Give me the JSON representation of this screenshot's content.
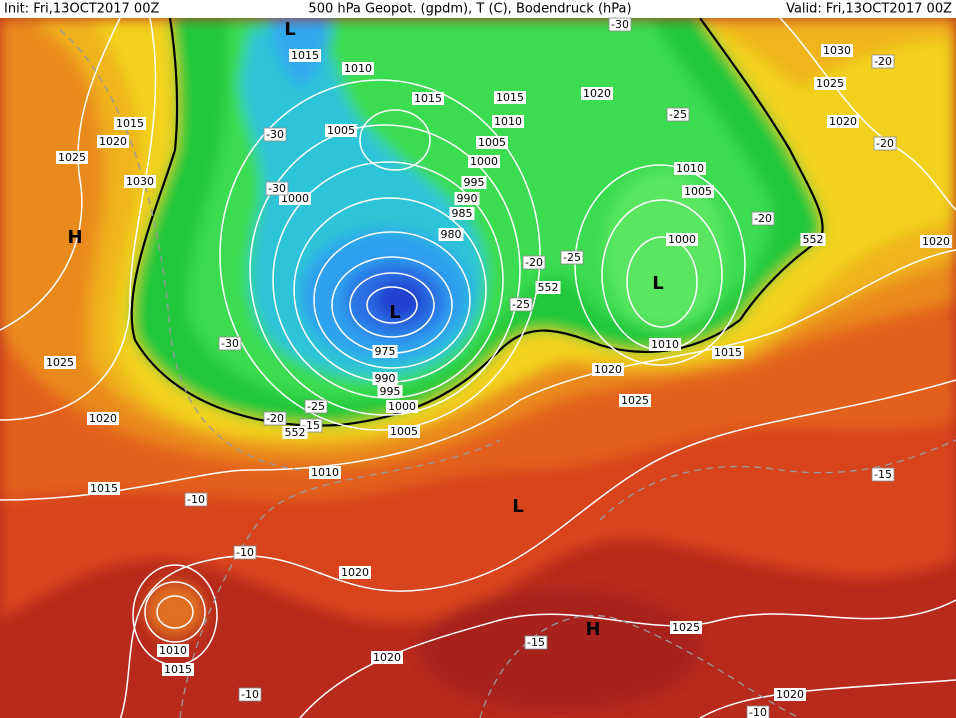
{
  "header": {
    "init": "Init: Fri,13OCT2017 00Z",
    "title": "500 hPa Geopot. (gpdm), T (C), Bodendruck (hPa)",
    "valid": "Valid: Fri,13OCT2017 00Z"
  },
  "pressure_labels": [
    "1015",
    "1010",
    "1015",
    "1015",
    "1020",
    "1030",
    "1025",
    "1020",
    "1015",
    "1020",
    "1025",
    "1030",
    "1005",
    "1010",
    "1005",
    "1000",
    "995",
    "990",
    "985",
    "980",
    "1000",
    "1010",
    "1005",
    "1000",
    "975",
    "990",
    "995",
    "1000",
    "1005",
    "1010",
    "1015",
    "1020",
    "1025",
    "1020",
    "1025",
    "1020",
    "1015",
    "1010",
    "1020",
    "1010",
    "1015",
    "1020",
    "1025",
    "1020"
  ],
  "temperature_labels": [
    "-30",
    "-20",
    "-25",
    "-20",
    "-30",
    "-30",
    "-20",
    "-20",
    "-25",
    "-25",
    "-30",
    "-20",
    "-25",
    "-15",
    "-10",
    "-10",
    "-15",
    "-15",
    "-10",
    "-10"
  ],
  "geopotential_labels": [
    "552",
    "552",
    "552"
  ],
  "centers": [
    "L",
    "L",
    "H",
    "L",
    "H",
    "L"
  ]
}
